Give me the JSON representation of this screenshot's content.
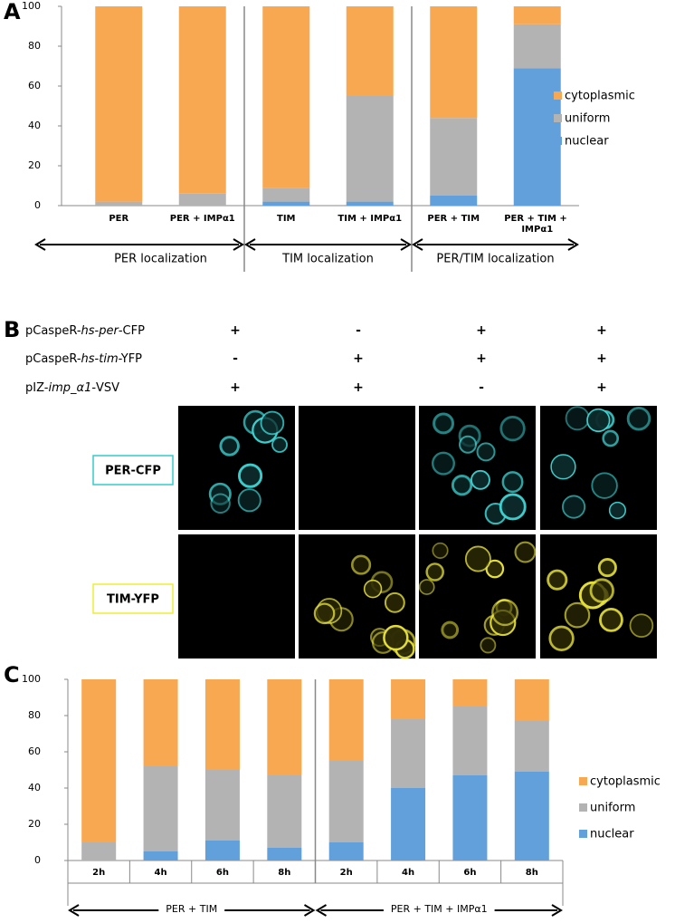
{
  "chart_data": [
    {
      "type": "bar",
      "stacked": true,
      "panel_label": "A",
      "categories": [
        "PER",
        "PER + IMPα1",
        "TIM",
        "TIM + IMPα1",
        "PER + TIM",
        "PER + TIM + IMPα1"
      ],
      "groups": [
        "PER localization",
        "TIM localization",
        "PER/TIM localization"
      ],
      "series": [
        {
          "name": "nuclear",
          "color": "#62a0dc",
          "values": [
            0,
            0,
            2,
            2,
            5,
            69
          ]
        },
        {
          "name": "uniform",
          "color": "#b3b3b3",
          "values": [
            2,
            6,
            7,
            53,
            39,
            22
          ]
        },
        {
          "name": "cytoplasmic",
          "color": "#f9a852",
          "values": [
            98,
            94,
            91,
            45,
            56,
            9
          ]
        }
      ],
      "ylim": [
        0,
        100
      ],
      "yticks": [
        0,
        20,
        40,
        60,
        80,
        100
      ],
      "grid": false
    },
    {
      "type": "bar",
      "stacked": true,
      "panel_label": "C",
      "categories": [
        "2h",
        "4h",
        "6h",
        "8h",
        "2h",
        "4h",
        "6h",
        "8h"
      ],
      "groups": [
        "PER + TIM",
        "PER + TIM + IMPα1"
      ],
      "series": [
        {
          "name": "nuclear",
          "color": "#62a0dc",
          "values": [
            0,
            5,
            11,
            7,
            10,
            40,
            47,
            49
          ]
        },
        {
          "name": "uniform",
          "color": "#b3b3b3",
          "values": [
            10,
            47,
            39,
            40,
            45,
            38,
            38,
            28
          ]
        },
        {
          "name": "cytoplasmic",
          "color": "#f9a852",
          "values": [
            90,
            48,
            50,
            53,
            45,
            22,
            15,
            23
          ]
        }
      ],
      "ylim": [
        0,
        100
      ],
      "yticks": [
        0,
        20,
        40,
        60,
        80,
        100
      ],
      "grid": false
    }
  ],
  "panel_b": {
    "label": "B",
    "constructs": [
      {
        "parts": [
          {
            "text": "pCaspeR-"
          },
          {
            "text": "hs",
            "italic": true
          },
          {
            "text": "-"
          },
          {
            "text": "per",
            "italic": true
          },
          {
            "text": "-CFP"
          }
        ],
        "signs": [
          "+",
          "-",
          "+",
          "+"
        ]
      },
      {
        "parts": [
          {
            "text": "pCaspeR-"
          },
          {
            "text": "hs",
            "italic": true
          },
          {
            "text": "-"
          },
          {
            "text": "tim",
            "italic": true
          },
          {
            "text": "-YFP"
          }
        ],
        "signs": [
          "-",
          "+",
          "+",
          "+"
        ]
      },
      {
        "parts": [
          {
            "text": "pIZ-"
          },
          {
            "text": "imp_α1",
            "italic": true
          },
          {
            "text": "-VSV"
          }
        ],
        "signs": [
          "+",
          "+",
          "-",
          "+"
        ]
      }
    ],
    "channels": [
      "PER-CFP",
      "TIM-YFP"
    ]
  }
}
